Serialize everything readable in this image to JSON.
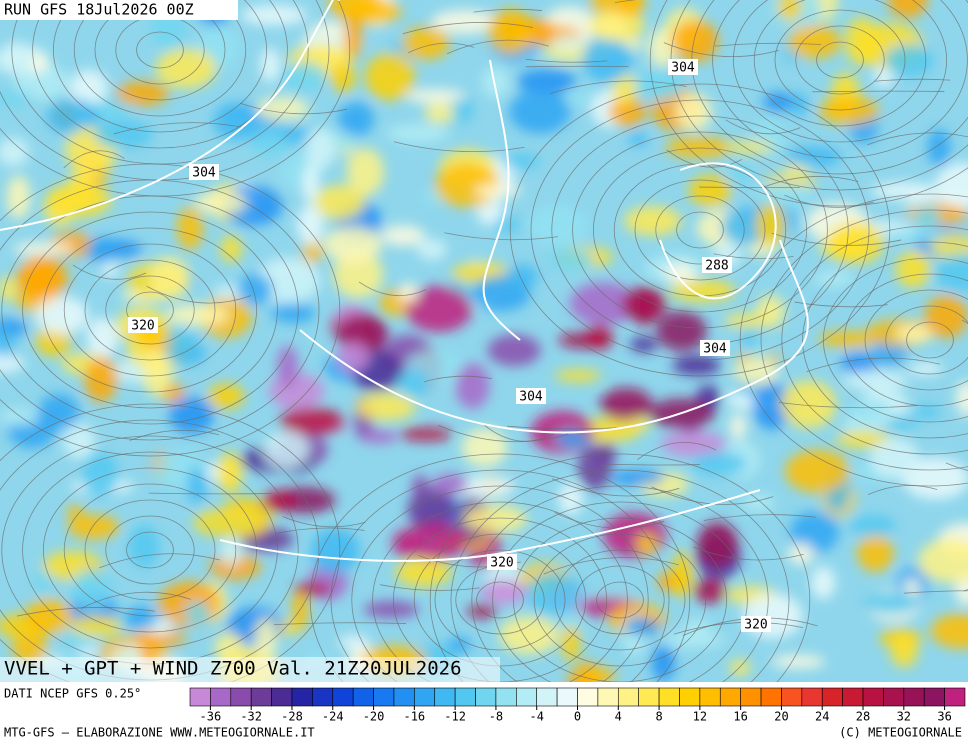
{
  "header": {
    "run": "RUN GFS 18Jul2026 00Z"
  },
  "map": {
    "contour_labels": [
      304,
      304,
      288,
      320,
      304,
      304,
      320,
      320
    ]
  },
  "footer": {
    "title": "VVEL + GPT + WIND Z700 Val. 21Z20JUL2026",
    "source": "DATI NCEP GFS 0.25°",
    "credit": "MTG-GFS — ELABORAZIONE WWW.METEOGIORNALE.IT",
    "copyright": "(C) METEOGIORNALE"
  },
  "colorbar": {
    "lim": [
      -38,
      38
    ],
    "ticks": [
      -36,
      -32,
      -28,
      -24,
      -20,
      -16,
      -12,
      -8,
      -4,
      0,
      4,
      8,
      12,
      16,
      20,
      24,
      28,
      32,
      36
    ],
    "colors": [
      "#c888d8",
      "#a868c8",
      "#8a4cac",
      "#6c3c98",
      "#4c2c94",
      "#2424a4",
      "#1a34c4",
      "#1044d8",
      "#1062e8",
      "#187af0",
      "#2290f2",
      "#30a6f2",
      "#40b8f2",
      "#52c8f0",
      "#70d6f0",
      "#92e2f2",
      "#b2ecf4",
      "#d2f4f8",
      "#eafafc",
      "#fffce2",
      "#fff8b4",
      "#fff284",
      "#ffea54",
      "#ffe024",
      "#ffd000",
      "#ffbe00",
      "#ffa800",
      "#ff9000",
      "#ff7400",
      "#f85420",
      "#e83630",
      "#d82428",
      "#c81a34",
      "#b81242",
      "#a8124e",
      "#981258",
      "#8c1460",
      "#c0207e"
    ]
  }
}
